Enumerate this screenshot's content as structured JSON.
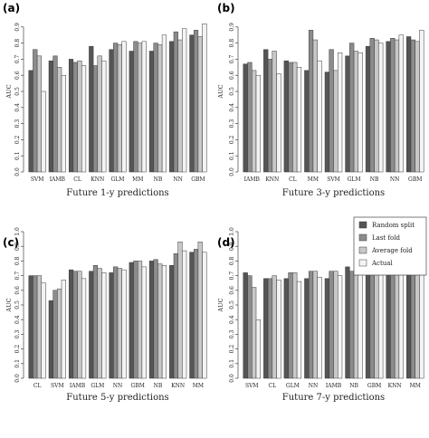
{
  "legend": {
    "items": [
      "Random split",
      "Last fold",
      "Average fold",
      "Actual"
    ],
    "colors": [
      "#555555",
      "#8c8c8c",
      "#c8c8c8",
      "#f4f4f4"
    ]
  },
  "chart_data": [
    {
      "type": "bar",
      "panel_label": "(a)",
      "xlabel": "Future 1-y predictions",
      "ylabel": "AUC",
      "ylim": [
        0,
        1.0
      ],
      "yticks": [
        "0.0",
        "0.1",
        "0.2",
        "0.3",
        "0.4",
        "0.5",
        "0.6",
        "0.7",
        "0.8",
        "0.9"
      ],
      "categories": [
        "SVM",
        "IAMB",
        "CL",
        "KNN",
        "GLM",
        "MM",
        "NB",
        "NN",
        "GBM"
      ],
      "series": [
        {
          "name": "Random split",
          "values": [
            0.63,
            0.69,
            0.7,
            0.78,
            0.76,
            0.75,
            0.75,
            0.81,
            0.85
          ]
        },
        {
          "name": "Last fold",
          "values": [
            0.76,
            0.72,
            0.68,
            0.66,
            0.8,
            0.81,
            0.8,
            0.87,
            0.88
          ]
        },
        {
          "name": "Average fold",
          "values": [
            0.72,
            0.65,
            0.69,
            0.72,
            0.79,
            0.8,
            0.79,
            0.82,
            0.84
          ]
        },
        {
          "name": "Actual",
          "values": [
            0.5,
            0.6,
            0.66,
            0.69,
            0.81,
            0.81,
            0.85,
            0.89,
            0.92
          ]
        }
      ]
    },
    {
      "type": "bar",
      "panel_label": "(b)",
      "xlabel": "Future 3-y predictions",
      "ylabel": "AUC",
      "ylim": [
        0,
        1.0
      ],
      "yticks": [
        "0.0",
        "0.1",
        "0.2",
        "0.3",
        "0.4",
        "0.5",
        "0.6",
        "0.7",
        "0.8",
        "0.9"
      ],
      "categories": [
        "IAMB",
        "KNN",
        "CL",
        "MM",
        "SVM",
        "GLM",
        "NB",
        "NN",
        "GBM"
      ],
      "series": [
        {
          "name": "Random split",
          "values": [
            0.67,
            0.76,
            0.69,
            0.63,
            0.62,
            0.72,
            0.78,
            0.81,
            0.84
          ]
        },
        {
          "name": "Last fold",
          "values": [
            0.68,
            0.7,
            0.68,
            0.88,
            0.76,
            0.8,
            0.83,
            0.83,
            0.82
          ]
        },
        {
          "name": "Average fold",
          "values": [
            0.63,
            0.75,
            0.68,
            0.82,
            0.63,
            0.75,
            0.82,
            0.82,
            0.81
          ]
        },
        {
          "name": "Actual",
          "values": [
            0.6,
            0.61,
            0.65,
            0.69,
            0.74,
            0.74,
            0.8,
            0.85,
            0.88
          ]
        }
      ]
    },
    {
      "type": "bar",
      "panel_label": "(c)",
      "xlabel": "Future 5-y predictions",
      "ylabel": "AUC",
      "ylim": [
        0,
        1.0
      ],
      "yticks": [
        "0.0",
        "0.1",
        "0.2",
        "0.3",
        "0.4",
        "0.5",
        "0.6",
        "0.7",
        "0.8",
        "0.9",
        "1.0"
      ],
      "categories": [
        "CL",
        "SVM",
        "IAMB",
        "GLM",
        "NN",
        "GBM",
        "NB",
        "KNN",
        "MM"
      ],
      "series": [
        {
          "name": "Random split",
          "values": [
            0.7,
            0.53,
            0.74,
            0.73,
            0.72,
            0.79,
            0.8,
            0.77,
            0.86
          ]
        },
        {
          "name": "Last fold",
          "values": [
            0.7,
            0.6,
            0.73,
            0.77,
            0.76,
            0.8,
            0.81,
            0.85,
            0.88
          ]
        },
        {
          "name": "Average fold",
          "values": [
            0.7,
            0.61,
            0.73,
            0.75,
            0.75,
            0.8,
            0.78,
            0.93,
            0.93
          ]
        },
        {
          "name": "Actual",
          "values": [
            0.65,
            0.67,
            0.68,
            0.72,
            0.74,
            0.76,
            0.77,
            0.87,
            0.86
          ]
        }
      ]
    },
    {
      "type": "bar",
      "panel_label": "(d)",
      "xlabel": "Future 7-y predictions",
      "ylabel": "AUC",
      "ylim": [
        0,
        1.0
      ],
      "yticks": [
        "0.0",
        "0.1",
        "0.2",
        "0.3",
        "0.4",
        "0.5",
        "0.6",
        "0.7",
        "0.8",
        "0.9",
        "1.0"
      ],
      "categories": [
        "SVM",
        "CL",
        "GLM",
        "NN",
        "IAMB",
        "NB",
        "GBM",
        "KNN",
        "MM"
      ],
      "series": [
        {
          "name": "Random split",
          "values": [
            0.72,
            0.68,
            0.68,
            0.68,
            0.68,
            0.76,
            0.77,
            0.8,
            0.85
          ]
        },
        {
          "name": "Last fold",
          "values": [
            0.7,
            0.68,
            0.72,
            0.73,
            0.73,
            0.73,
            0.78,
            0.84,
            0.86
          ]
        },
        {
          "name": "Average fold",
          "values": [
            0.62,
            0.7,
            0.72,
            0.73,
            0.73,
            0.74,
            0.79,
            0.92,
            0.92
          ]
        },
        {
          "name": "Actual",
          "values": [
            0.4,
            0.67,
            0.66,
            0.69,
            0.7,
            0.72,
            0.77,
            0.82,
            0.85
          ]
        }
      ]
    }
  ]
}
